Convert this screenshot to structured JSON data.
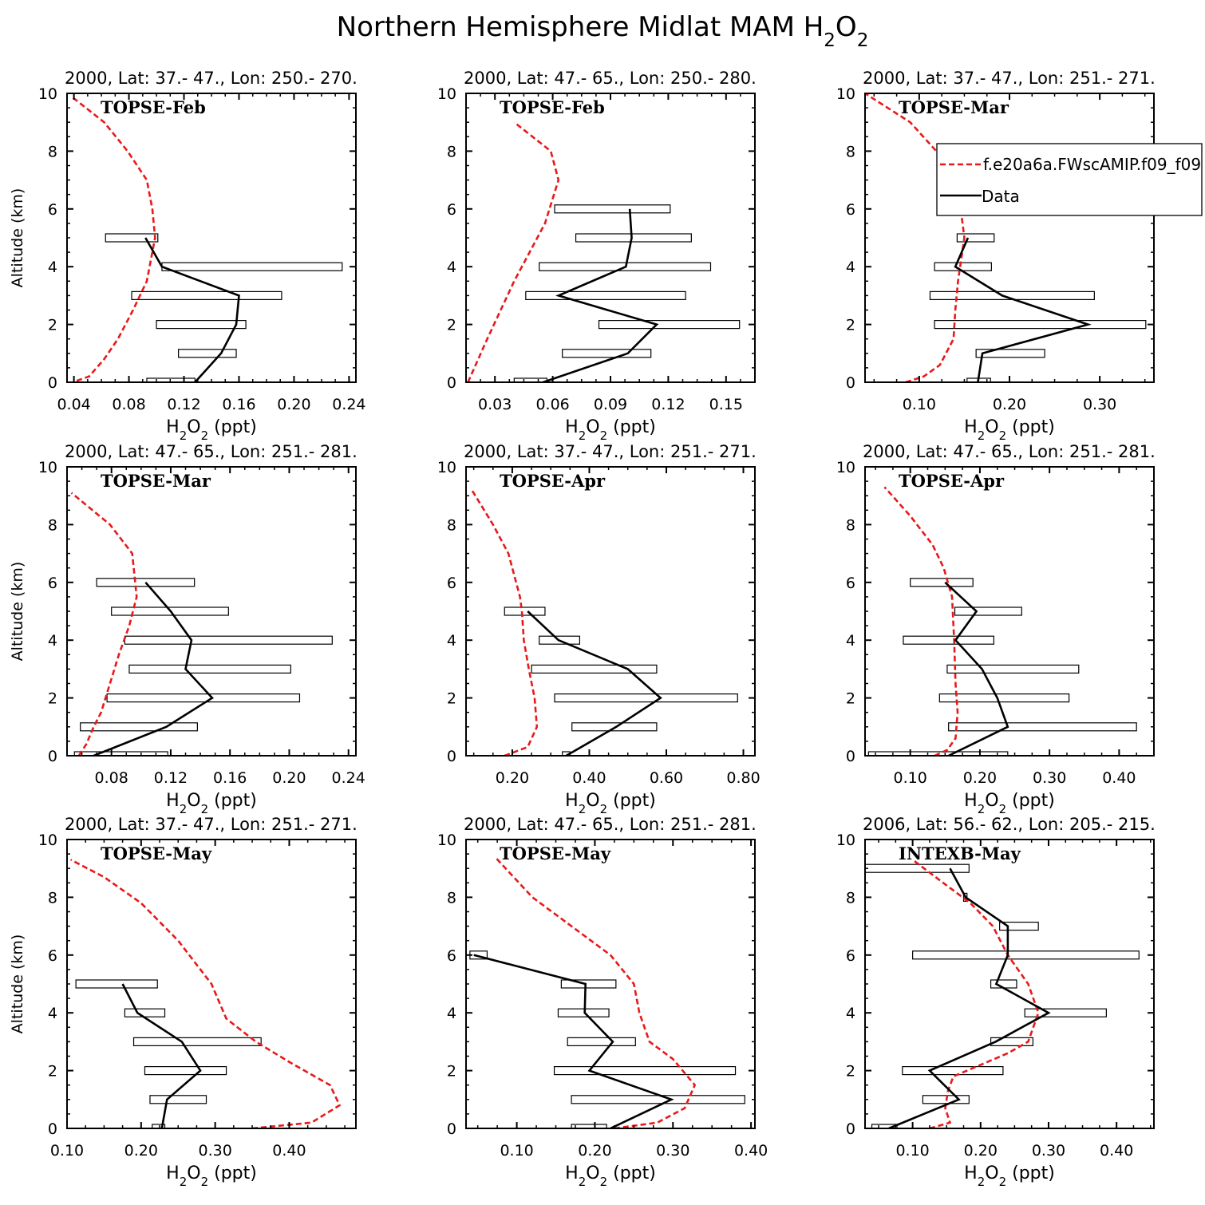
{
  "figure": {
    "title_main": "Northern Hemisphere Midlat MAM H",
    "title_sub1": "2",
    "title_o": "O",
    "title_sub2": "2",
    "ylabel": "Altitude (km)",
    "xlabel_h": "H",
    "xlabel_sub1": "2",
    "xlabel_o": "O",
    "xlabel_sub2": "2",
    "xlabel_unit": " (ppt)",
    "model_color": "#e8191a",
    "data_color": "#000000"
  },
  "legend": {
    "model_label": "f.e20a6a.FWscAMIP.f09_f09",
    "data_label": "Data"
  },
  "chart_data": [
    {
      "type": "line",
      "title": "2000, Lat: 37.- 47., Lon: 250.- 270.",
      "campaign": "TOPSE-Feb",
      "xlim": [
        0.035,
        0.245
      ],
      "xticks": [
        0.04,
        0.08,
        0.12,
        0.16,
        0.2,
        0.24
      ],
      "xtick_labels": [
        "0.04",
        "0.08",
        "0.12",
        "0.16",
        "0.20",
        "0.24"
      ],
      "ylim": [
        0,
        10
      ],
      "yticks": [
        0,
        2,
        4,
        6,
        8,
        10
      ],
      "ytick_labels": [
        "0",
        "2",
        "4",
        "6",
        "8",
        "10"
      ],
      "model": [
        [
          0.042,
          0.05
        ],
        [
          0.051,
          0.2
        ],
        [
          0.062,
          0.8
        ],
        [
          0.072,
          1.5
        ],
        [
          0.083,
          2.5
        ],
        [
          0.093,
          3.5
        ],
        [
          0.099,
          5
        ],
        [
          0.097,
          6
        ],
        [
          0.093,
          7
        ],
        [
          0.079,
          8
        ],
        [
          0.062,
          9
        ],
        [
          0.038,
          9.9
        ]
      ],
      "data": [
        [
          0.128,
          0
        ],
        [
          0.147,
          1
        ],
        [
          0.158,
          2
        ],
        [
          0.16,
          3
        ],
        [
          0.104,
          4
        ],
        [
          0.092,
          5
        ]
      ],
      "bars": [
        [
          0.093,
          0.128,
          0
        ],
        [
          0.116,
          0.158,
          1
        ],
        [
          0.1,
          0.165,
          2
        ],
        [
          0.082,
          0.191,
          3
        ],
        [
          0.104,
          0.235,
          4
        ],
        [
          0.063,
          0.101,
          5
        ]
      ]
    },
    {
      "type": "line",
      "title": "2000, Lat: 47.- 65., Lon: 250.- 280.",
      "campaign": "TOPSE-Feb",
      "xlim": [
        0.015,
        0.165
      ],
      "xticks": [
        0.03,
        0.06,
        0.09,
        0.12,
        0.15
      ],
      "xtick_labels": [
        "0.03",
        "0.06",
        "0.09",
        "0.12",
        "0.15"
      ],
      "ylim": [
        0,
        10
      ],
      "yticks": [
        0,
        2,
        4,
        6,
        8,
        10
      ],
      "ytick_labels": [
        "0",
        "2",
        "4",
        "6",
        "8",
        "10"
      ],
      "model": [
        [
          0.016,
          0
        ],
        [
          0.02,
          0.6
        ],
        [
          0.026,
          1.5
        ],
        [
          0.033,
          2.5
        ],
        [
          0.04,
          3.5
        ],
        [
          0.048,
          4.5
        ],
        [
          0.056,
          5.5
        ],
        [
          0.063,
          7
        ],
        [
          0.059,
          8
        ],
        [
          0.04,
          9
        ]
      ],
      "data": [
        [
          0.055,
          0
        ],
        [
          0.099,
          1
        ],
        [
          0.114,
          2
        ],
        [
          0.063,
          3
        ],
        [
          0.098,
          4
        ],
        [
          0.101,
          5
        ],
        [
          0.1,
          6
        ]
      ],
      "bars": [
        [
          0.04,
          0.057,
          0
        ],
        [
          0.065,
          0.111,
          1
        ],
        [
          0.084,
          0.157,
          2
        ],
        [
          0.046,
          0.129,
          3
        ],
        [
          0.053,
          0.142,
          4
        ],
        [
          0.072,
          0.132,
          5
        ],
        [
          0.061,
          0.121,
          6
        ]
      ]
    },
    {
      "type": "line",
      "title": "2000, Lat: 37.- 47., Lon: 251.- 271.",
      "campaign": "TOPSE-Mar",
      "xlim": [
        0.04,
        0.36
      ],
      "xticks": [
        0.1,
        0.2,
        0.3
      ],
      "xtick_labels": [
        "0.10",
        "0.20",
        "0.30"
      ],
      "ylim": [
        0,
        10
      ],
      "yticks": [
        0,
        2,
        4,
        6,
        8,
        10
      ],
      "ytick_labels": [
        "0",
        "2",
        "4",
        "6",
        "8",
        "10"
      ],
      "model": [
        [
          0.085,
          0
        ],
        [
          0.105,
          0.2
        ],
        [
          0.123,
          0.6
        ],
        [
          0.138,
          1.5
        ],
        [
          0.14,
          2.5
        ],
        [
          0.143,
          3.5
        ],
        [
          0.15,
          5
        ],
        [
          0.146,
          6
        ],
        [
          0.138,
          7
        ],
        [
          0.119,
          8
        ],
        [
          0.09,
          9
        ],
        [
          0.04,
          10
        ]
      ],
      "data": [
        [
          0.165,
          0
        ],
        [
          0.17,
          1
        ],
        [
          0.287,
          2
        ],
        [
          0.192,
          3
        ],
        [
          0.14,
          4
        ],
        [
          0.154,
          5
        ]
      ],
      "bars": [
        [
          0.153,
          0.179,
          0
        ],
        [
          0.163,
          0.239,
          1
        ],
        [
          0.117,
          0.351,
          2
        ],
        [
          0.112,
          0.294,
          3
        ],
        [
          0.117,
          0.18,
          4
        ],
        [
          0.142,
          0.183,
          5
        ]
      ]
    },
    {
      "type": "line",
      "title": "2000, Lat: 47.- 65., Lon: 251.- 281.",
      "campaign": "TOPSE-Mar",
      "xlim": [
        0.05,
        0.245
      ],
      "xticks": [
        0.08,
        0.12,
        0.16,
        0.2,
        0.24
      ],
      "xtick_labels": [
        "0.08",
        "0.12",
        "0.16",
        "0.20",
        "0.24"
      ],
      "ylim": [
        0,
        10
      ],
      "yticks": [
        0,
        2,
        4,
        6,
        8,
        10
      ],
      "ytick_labels": [
        "0",
        "2",
        "4",
        "6",
        "8",
        "10"
      ],
      "model": [
        [
          0.058,
          0
        ],
        [
          0.063,
          0.4
        ],
        [
          0.068,
          1
        ],
        [
          0.073,
          1.5
        ],
        [
          0.079,
          2.5
        ],
        [
          0.085,
          3.5
        ],
        [
          0.092,
          4.5
        ],
        [
          0.097,
          5.5
        ],
        [
          0.094,
          7
        ],
        [
          0.079,
          8
        ],
        [
          0.053,
          9.1
        ]
      ],
      "data": [
        [
          0.068,
          0
        ],
        [
          0.117,
          1
        ],
        [
          0.148,
          2
        ],
        [
          0.13,
          3
        ],
        [
          0.134,
          4
        ],
        [
          0.12,
          5
        ],
        [
          0.103,
          6
        ]
      ],
      "bars": [
        [
          0.055,
          0.118,
          0
        ],
        [
          0.059,
          0.138,
          1
        ],
        [
          0.077,
          0.207,
          2
        ],
        [
          0.092,
          0.201,
          3
        ],
        [
          0.089,
          0.229,
          4
        ],
        [
          0.08,
          0.159,
          5
        ],
        [
          0.07,
          0.136,
          6
        ]
      ]
    },
    {
      "type": "line",
      "title": "2000, Lat: 37.- 47., Lon: 251.- 271.",
      "campaign": "TOPSE-Apr",
      "xlim": [
        0.08,
        0.83
      ],
      "xticks": [
        0.2,
        0.4,
        0.6,
        0.8
      ],
      "xtick_labels": [
        "0.20",
        "0.40",
        "0.60",
        "0.80"
      ],
      "ylim": [
        0,
        10
      ],
      "yticks": [
        0,
        2,
        4,
        6,
        8,
        10
      ],
      "ytick_labels": [
        "0",
        "2",
        "4",
        "6",
        "8",
        "10"
      ],
      "model": [
        [
          0.18,
          0
        ],
        [
          0.24,
          0.3
        ],
        [
          0.264,
          1
        ],
        [
          0.258,
          2
        ],
        [
          0.243,
          3
        ],
        [
          0.23,
          4
        ],
        [
          0.225,
          5
        ],
        [
          0.22,
          5.5
        ],
        [
          0.19,
          7
        ],
        [
          0.15,
          8
        ],
        [
          0.095,
          9.2
        ]
      ],
      "data": [
        [
          0.34,
          0
        ],
        [
          0.47,
          1
        ],
        [
          0.585,
          2
        ],
        [
          0.5,
          3
        ],
        [
          0.32,
          4
        ],
        [
          0.24,
          5
        ]
      ],
      "bars": [
        [
          0.33,
          0.35,
          0
        ],
        [
          0.355,
          0.575,
          1
        ],
        [
          0.31,
          0.785,
          2
        ],
        [
          0.25,
          0.575,
          3
        ],
        [
          0.27,
          0.375,
          4
        ],
        [
          0.18,
          0.285,
          5
        ]
      ]
    },
    {
      "type": "line",
      "title": "2000, Lat: 47.- 65., Lon: 251.- 281.",
      "campaign": "TOPSE-Apr",
      "xlim": [
        0.035,
        0.45
      ],
      "xticks": [
        0.1,
        0.2,
        0.3,
        0.4
      ],
      "xtick_labels": [
        "0.10",
        "0.20",
        "0.30",
        "0.40"
      ],
      "ylim": [
        0,
        10
      ],
      "yticks": [
        0,
        2,
        4,
        6,
        8,
        10
      ],
      "ytick_labels": [
        "0",
        "2",
        "4",
        "6",
        "8",
        "10"
      ],
      "model": [
        [
          0.135,
          0
        ],
        [
          0.153,
          0.2
        ],
        [
          0.165,
          0.6
        ],
        [
          0.168,
          1.5
        ],
        [
          0.165,
          2.5
        ],
        [
          0.163,
          4
        ],
        [
          0.16,
          5.5
        ],
        [
          0.148,
          6.5
        ],
        [
          0.132,
          7.3
        ],
        [
          0.1,
          8.3
        ],
        [
          0.063,
          9.3
        ]
      ],
      "data": [
        [
          0.155,
          0
        ],
        [
          0.24,
          1
        ],
        [
          0.225,
          2
        ],
        [
          0.203,
          3
        ],
        [
          0.165,
          4
        ],
        [
          0.195,
          5
        ],
        [
          0.15,
          6
        ]
      ],
      "bars": [
        [
          0.04,
          0.24,
          0
        ],
        [
          0.155,
          0.425,
          1
        ],
        [
          0.142,
          0.328,
          2
        ],
        [
          0.153,
          0.342,
          3
        ],
        [
          0.09,
          0.22,
          4
        ],
        [
          0.164,
          0.26,
          5
        ],
        [
          0.1,
          0.19,
          6
        ]
      ]
    },
    {
      "type": "line",
      "title": "2000, Lat: 37.- 47., Lon: 251.- 271.",
      "campaign": "TOPSE-May",
      "xlim": [
        0.1,
        0.49
      ],
      "xticks": [
        0.1,
        0.2,
        0.3,
        0.4
      ],
      "xtick_labels": [
        "0.10",
        "0.20",
        "0.30",
        "0.40"
      ],
      "ylim": [
        0,
        10
      ],
      "yticks": [
        0,
        2,
        4,
        6,
        8,
        10
      ],
      "ytick_labels": [
        "0",
        "2",
        "4",
        "6",
        "8",
        "10"
      ],
      "model": [
        [
          0.35,
          0
        ],
        [
          0.43,
          0.2
        ],
        [
          0.468,
          0.8
        ],
        [
          0.455,
          1.5
        ],
        [
          0.4,
          2.3
        ],
        [
          0.355,
          3
        ],
        [
          0.315,
          3.8
        ],
        [
          0.295,
          5
        ],
        [
          0.25,
          6.5
        ],
        [
          0.2,
          7.8
        ],
        [
          0.15,
          8.7
        ],
        [
          0.105,
          9.3
        ]
      ],
      "data": [
        [
          0.228,
          0
        ],
        [
          0.235,
          1
        ],
        [
          0.28,
          2
        ],
        [
          0.255,
          3
        ],
        [
          0.195,
          4
        ],
        [
          0.175,
          5
        ]
      ],
      "bars": [
        [
          0.215,
          0.232,
          0
        ],
        [
          0.212,
          0.288,
          1
        ],
        [
          0.205,
          0.315,
          2
        ],
        [
          0.19,
          0.362,
          3
        ],
        [
          0.178,
          0.232,
          4
        ],
        [
          0.112,
          0.222,
          5
        ]
      ]
    },
    {
      "type": "line",
      "title": "2000, Lat: 47.- 65., Lon: 251.- 281.",
      "campaign": "TOPSE-May",
      "xlim": [
        0.035,
        0.405
      ],
      "xticks": [
        0.1,
        0.2,
        0.3,
        0.4
      ],
      "xtick_labels": [
        "0.10",
        "0.20",
        "0.30",
        "0.40"
      ],
      "ylim": [
        0,
        10
      ],
      "yticks": [
        0,
        2,
        4,
        6,
        8,
        10
      ],
      "ytick_labels": [
        "0",
        "2",
        "4",
        "6",
        "8",
        "10"
      ],
      "model": [
        [
          0.225,
          0
        ],
        [
          0.28,
          0.2
        ],
        [
          0.315,
          0.7
        ],
        [
          0.328,
          1.5
        ],
        [
          0.3,
          2.4
        ],
        [
          0.27,
          3
        ],
        [
          0.257,
          4
        ],
        [
          0.25,
          5
        ],
        [
          0.22,
          6
        ],
        [
          0.17,
          7
        ],
        [
          0.12,
          8
        ],
        [
          0.072,
          9.4
        ]
      ],
      "data": [
        [
          0.22,
          0
        ],
        [
          0.298,
          1
        ],
        [
          0.193,
          2
        ],
        [
          0.223,
          3
        ],
        [
          0.187,
          4
        ],
        [
          0.188,
          5
        ],
        [
          0.045,
          6
        ]
      ],
      "bars": [
        [
          0.17,
          0.215,
          0
        ],
        [
          0.17,
          0.392,
          1
        ],
        [
          0.148,
          0.38,
          2
        ],
        [
          0.165,
          0.252,
          3
        ],
        [
          0.153,
          0.218,
          4
        ],
        [
          0.157,
          0.227,
          5
        ],
        [
          0.04,
          0.062,
          6
        ]
      ]
    },
    {
      "type": "line",
      "title": "2006, Lat: 56.- 62., Lon: 205.- 215.",
      "campaign": "INTEXB-May",
      "xlim": [
        0.03,
        0.455
      ],
      "xticks": [
        0.1,
        0.2,
        0.3,
        0.4
      ],
      "xtick_labels": [
        "0.10",
        "0.20",
        "0.30",
        "0.40"
      ],
      "ylim": [
        0,
        10
      ],
      "yticks": [
        0,
        2,
        4,
        6,
        8,
        10
      ],
      "ytick_labels": [
        "0",
        "2",
        "4",
        "6",
        "8",
        "10"
      ],
      "model": [
        [
          0.125,
          0
        ],
        [
          0.155,
          0.2
        ],
        [
          0.148,
          0.7
        ],
        [
          0.152,
          1.3
        ],
        [
          0.16,
          1.8
        ],
        [
          0.19,
          2.1
        ],
        [
          0.24,
          2.6
        ],
        [
          0.27,
          3
        ],
        [
          0.285,
          4
        ],
        [
          0.27,
          5
        ],
        [
          0.24,
          6
        ],
        [
          0.218,
          7
        ],
        [
          0.185,
          7.8
        ],
        [
          0.145,
          8.5
        ],
        [
          0.1,
          9.3
        ]
      ],
      "data": [
        [
          0.065,
          0
        ],
        [
          0.168,
          1
        ],
        [
          0.125,
          2
        ],
        [
          0.222,
          3
        ],
        [
          0.3,
          4
        ],
        [
          0.223,
          5
        ],
        [
          0.24,
          6
        ],
        [
          0.24,
          7
        ],
        [
          0.178,
          8
        ],
        [
          0.155,
          9
        ]
      ],
      "bars": [
        [
          0.04,
          0.077,
          0
        ],
        [
          0.115,
          0.183,
          1
        ],
        [
          0.085,
          0.233,
          2
        ],
        [
          0.215,
          0.277,
          3
        ],
        [
          0.265,
          0.385,
          4
        ],
        [
          0.215,
          0.253,
          5
        ],
        [
          0.1,
          0.433,
          6
        ],
        [
          0.228,
          0.285,
          7
        ],
        [
          0.175,
          0.18,
          8
        ],
        [
          0.03,
          0.183,
          9
        ]
      ]
    }
  ]
}
